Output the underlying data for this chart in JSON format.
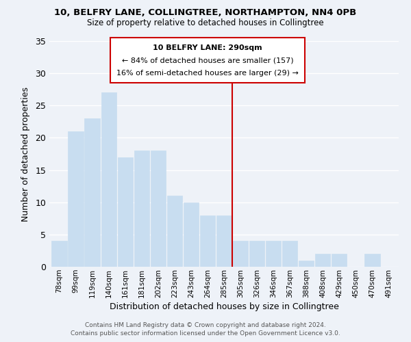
{
  "title1": "10, BELFRY LANE, COLLINGTREE, NORTHAMPTON, NN4 0PB",
  "title2": "Size of property relative to detached houses in Collingtree",
  "xlabel": "Distribution of detached houses by size in Collingtree",
  "ylabel": "Number of detached properties",
  "bar_labels": [
    "78sqm",
    "99sqm",
    "119sqm",
    "140sqm",
    "161sqm",
    "181sqm",
    "202sqm",
    "223sqm",
    "243sqm",
    "264sqm",
    "285sqm",
    "305sqm",
    "326sqm",
    "346sqm",
    "367sqm",
    "388sqm",
    "408sqm",
    "429sqm",
    "450sqm",
    "470sqm",
    "491sqm"
  ],
  "bar_values": [
    4,
    21,
    23,
    27,
    17,
    18,
    18,
    11,
    10,
    8,
    8,
    4,
    4,
    4,
    4,
    1,
    2,
    2,
    0,
    2,
    0
  ],
  "bar_color": "#c8ddf0",
  "vline_index": 10,
  "vline_color": "#cc0000",
  "annotation_title": "10 BELFRY LANE: 290sqm",
  "annotation_line1": "← 84% of detached houses are smaller (157)",
  "annotation_line2": "16% of semi-detached houses are larger (29) →",
  "annotation_box_color": "#ffffff",
  "annotation_box_edge": "#cc0000",
  "ylim": [
    0,
    35
  ],
  "yticks": [
    0,
    5,
    10,
    15,
    20,
    25,
    30,
    35
  ],
  "footer1": "Contains HM Land Registry data © Crown copyright and database right 2024.",
  "footer2": "Contains public sector information licensed under the Open Government Licence v3.0.",
  "bg_color": "#eef2f8",
  "grid_color": "#ffffff"
}
